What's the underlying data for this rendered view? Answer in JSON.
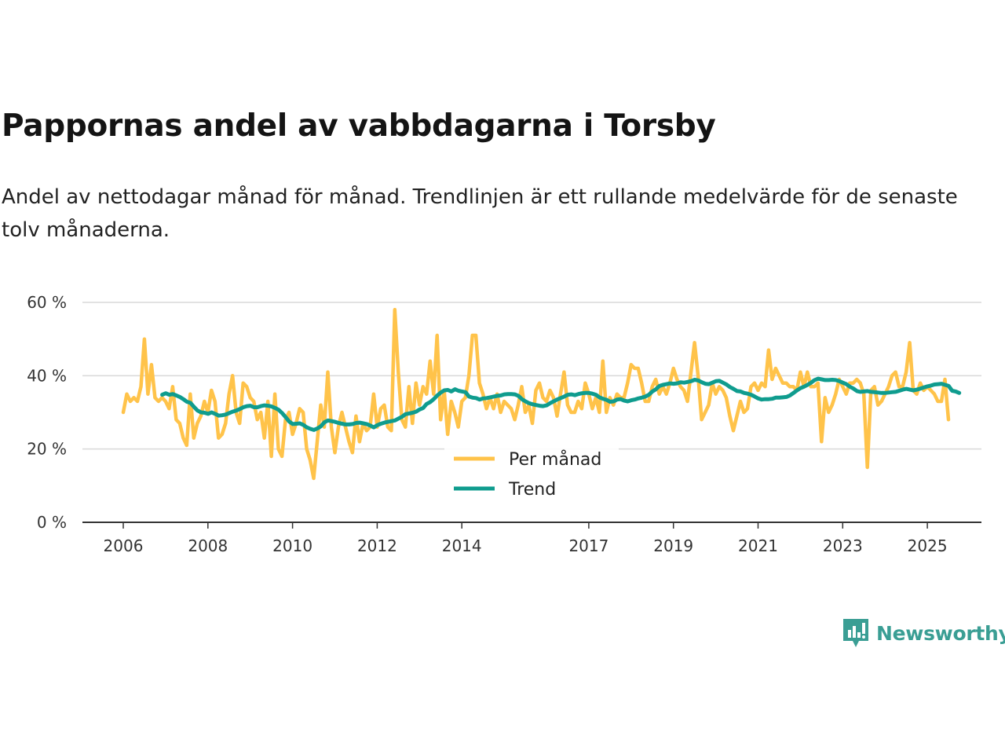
{
  "header": {
    "title": "Pappornas andel av vabbdagarna i Torsby",
    "subtitle": "Andel av nettodagar månad för månad. Trendlinjen är ett rullande medelvärde för de senaste tolv månaderna."
  },
  "brand": {
    "name": "Newsworthy",
    "icon": "newsworthy-logo-icon",
    "color": "#3a9e94"
  },
  "colors": {
    "monthly": "#ffc34a",
    "trend": "#0f9c8e",
    "grid": "#d9d9d9",
    "axis": "#333333"
  },
  "chart_data": {
    "type": "line",
    "title": "Pappornas andel av vabbdagarna i Torsby",
    "xlabel": "",
    "ylabel": "",
    "ylim": [
      0,
      60
    ],
    "y_ticks": [
      0,
      20,
      40,
      60
    ],
    "y_tick_labels": [
      "0 %",
      "20 %",
      "40 %",
      "60 %"
    ],
    "x_range": [
      2006.0,
      2025.4
    ],
    "x_ticks": [
      2006,
      2008,
      2010,
      2012,
      2014,
      2017,
      2019,
      2021,
      2023,
      2025
    ],
    "x_tick_labels": [
      "2006",
      "2008",
      "2010",
      "2012",
      "2014",
      "2017",
      "2019",
      "2021",
      "2023",
      "2025"
    ],
    "legend": {
      "placement": "center-bottom",
      "entries": [
        "Per månad",
        "Trend"
      ]
    },
    "series": [
      {
        "name": "Per månad",
        "x_start": 2006.0,
        "step": 0.08333,
        "values": [
          30,
          35,
          33,
          34,
          33,
          37,
          50,
          35,
          43,
          34,
          33,
          34,
          33,
          31,
          37,
          28,
          27,
          23,
          21,
          35,
          23,
          27,
          29,
          33,
          30,
          36,
          33,
          23,
          24,
          27,
          35,
          40,
          30,
          27,
          38,
          37,
          34,
          33,
          28,
          30,
          23,
          33,
          18,
          35,
          20,
          18,
          28,
          30,
          24,
          27,
          31,
          30,
          20,
          17,
          12,
          22,
          32,
          26,
          41,
          26,
          19,
          26,
          30,
          26,
          22,
          19,
          29,
          22,
          27,
          25,
          26,
          35,
          26,
          31,
          32,
          26,
          25,
          58,
          41,
          28,
          26,
          37,
          27,
          38,
          32,
          37,
          35,
          44,
          35,
          51,
          28,
          36,
          24,
          33,
          30,
          26,
          33,
          34,
          40,
          51,
          51,
          38,
          35,
          31,
          34,
          31,
          35,
          30,
          33,
          32,
          31,
          28,
          32,
          37,
          30,
          32,
          27,
          36,
          38,
          34,
          33,
          36,
          34,
          29,
          35,
          41,
          32,
          30,
          30,
          33,
          31,
          38,
          35,
          31,
          34,
          30,
          44,
          30,
          34,
          32,
          35,
          34,
          34,
          38,
          43,
          42,
          42,
          38,
          33,
          33,
          37,
          39,
          35,
          37,
          35,
          38,
          42,
          39,
          37,
          36,
          33,
          41,
          49,
          40,
          28,
          30,
          32,
          38,
          35,
          37,
          36,
          34,
          29,
          25,
          29,
          33,
          30,
          31,
          37,
          38,
          36,
          38,
          37,
          47,
          39,
          42,
          40,
          38,
          38,
          37,
          37,
          36,
          41,
          37,
          41,
          37,
          37,
          38,
          22,
          34,
          30,
          32,
          35,
          39,
          37,
          35,
          38,
          38,
          39,
          38,
          35,
          15,
          36,
          37,
          32,
          33,
          35,
          37,
          40,
          41,
          37,
          37,
          41,
          49,
          36,
          35,
          38,
          36,
          37,
          36,
          35,
          33,
          33,
          39,
          28
        ]
      },
      {
        "name": "Trend",
        "x_start": 2006.92,
        "step": 0.08333,
        "values": [
          34.8,
          35.2,
          34.8,
          35.0,
          34.6,
          34.2,
          33.6,
          32.9,
          32.6,
          31.5,
          30.5,
          30.0,
          29.9,
          29.6,
          30.0,
          29.6,
          29.1,
          29.2,
          29.4,
          29.8,
          30.2,
          30.5,
          30.9,
          31.4,
          31.7,
          31.8,
          31.4,
          31.4,
          31.7,
          31.9,
          31.8,
          31.6,
          31.2,
          30.7,
          29.8,
          28.7,
          27.5,
          26.8,
          26.9,
          27.0,
          26.6,
          25.9,
          25.5,
          25.2,
          25.6,
          26.2,
          27.3,
          27.8,
          27.6,
          27.4,
          27.1,
          26.9,
          26.7,
          26.7,
          26.8,
          27.1,
          27.2,
          27.0,
          26.8,
          26.4,
          25.9,
          26.5,
          26.9,
          27.2,
          27.4,
          27.6,
          27.8,
          28.3,
          28.8,
          29.5,
          29.7,
          29.9,
          30.2,
          30.8,
          31.2,
          32.3,
          32.8,
          33.6,
          34.6,
          35.4,
          36.0,
          36.1,
          35.7,
          36.3,
          35.9,
          35.7,
          35.5,
          34.3,
          34.0,
          33.9,
          33.5,
          33.8,
          33.9,
          34.1,
          34.3,
          34.5,
          34.6,
          34.9,
          35.0,
          35.0,
          34.9,
          34.5,
          33.6,
          33.0,
          32.5,
          32.2,
          32.0,
          31.8,
          31.7,
          31.9,
          32.5,
          33.0,
          33.5,
          33.9,
          34.3,
          34.8,
          34.9,
          34.7,
          35.0,
          35.2,
          35.3,
          35.3,
          35.1,
          34.8,
          34.1,
          33.7,
          33.4,
          32.9,
          33.0,
          33.5,
          33.6,
          33.2,
          33.0,
          33.3,
          33.5,
          33.8,
          34.0,
          34.3,
          34.8,
          35.7,
          36.3,
          37.2,
          37.5,
          37.7,
          37.9,
          37.8,
          37.9,
          38.2,
          38.1,
          38.3,
          38.5,
          38.9,
          38.7,
          38.2,
          37.8,
          37.7,
          38.1,
          38.5,
          38.6,
          38.1,
          37.6,
          36.9,
          36.4,
          35.8,
          35.7,
          35.3,
          35.1,
          34.8,
          34.3,
          33.8,
          33.5,
          33.6,
          33.6,
          33.7,
          34.0,
          34.0,
          34.1,
          34.2,
          34.6,
          35.3,
          36.0,
          36.6,
          37.0,
          37.5,
          38.1,
          38.8,
          39.2,
          39.0,
          38.8,
          38.8,
          38.9,
          38.8,
          38.5,
          38.1,
          37.7,
          37.0,
          36.5,
          35.8,
          35.6,
          35.7,
          35.8,
          35.6,
          35.5,
          35.4,
          35.3,
          35.3,
          35.4,
          35.5,
          35.6,
          35.9,
          36.2,
          36.4,
          36.2,
          36.0,
          36.2,
          36.5,
          36.8,
          37.1,
          37.3,
          37.6,
          37.7,
          37.8,
          37.5,
          37.2,
          35.9,
          35.7,
          35.3
        ]
      }
    ]
  }
}
